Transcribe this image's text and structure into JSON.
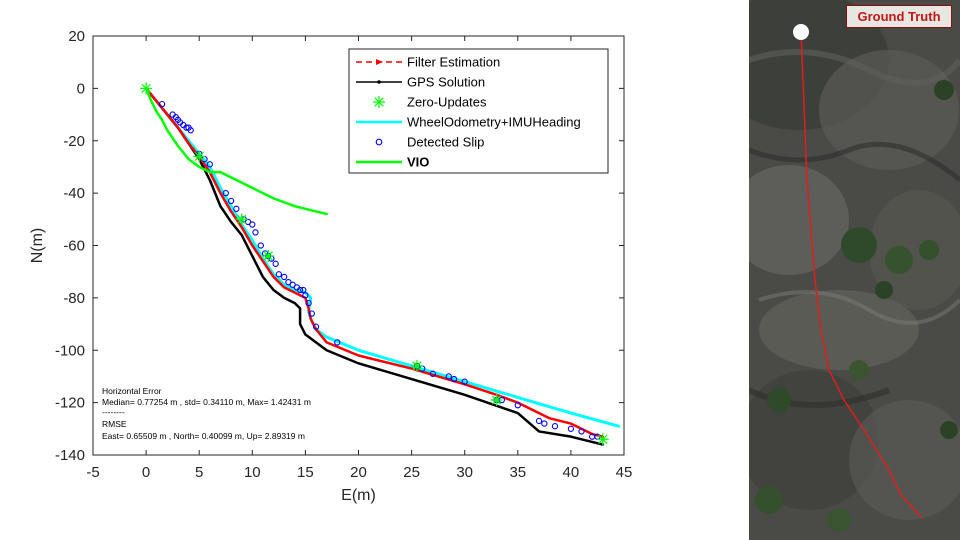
{
  "chart_data": {
    "type": "line",
    "xlabel": "E(m)",
    "ylabel": "N(m)",
    "xlim": [
      -5,
      45
    ],
    "ylim": [
      -140,
      20
    ],
    "xticks": [
      -5,
      0,
      5,
      10,
      15,
      20,
      25,
      30,
      35,
      40,
      45
    ],
    "yticks": [
      20,
      0,
      -20,
      -40,
      -60,
      -80,
      -100,
      -120,
      -140
    ],
    "grid": false,
    "legend_position": "top-right",
    "legend": [
      "Filter Estimation",
      "GPS Solution",
      "Zero-Updates",
      "WheelOdometry+IMUHeading",
      "Detected Slip",
      "VIO"
    ],
    "series": [
      {
        "name": "WheelOdometry+IMUHeading",
        "color": "#00ffff",
        "x": [
          0,
          1,
          2,
          3,
          4,
          5,
          6,
          7,
          8,
          9,
          10,
          11,
          12,
          13,
          14,
          15,
          15.5,
          15.3,
          15.5,
          16,
          17,
          20,
          25,
          30,
          35,
          40,
          44.5
        ],
        "y": [
          0,
          -5,
          -10,
          -15,
          -20,
          -25,
          -30,
          -38,
          -45,
          -52,
          -58,
          -65,
          -71,
          -75,
          -77,
          -78,
          -80,
          -85,
          -88,
          -92,
          -95,
          -100,
          -106,
          -112,
          -118,
          -124,
          -129
        ]
      },
      {
        "name": "Filter Estimation",
        "color": "#ff0000",
        "x": [
          0,
          1,
          2,
          3,
          4,
          5,
          6,
          7,
          8,
          9,
          10,
          11,
          12,
          13,
          14,
          15,
          15.3,
          15.5,
          16,
          17,
          20,
          25,
          30,
          33,
          35,
          38,
          40,
          42,
          43
        ],
        "y": [
          0,
          -5,
          -10,
          -15,
          -21,
          -26,
          -32,
          -40,
          -47,
          -53,
          -60,
          -66,
          -72,
          -76,
          -78,
          -80,
          -84,
          -88,
          -92,
          -97,
          -102,
          -107,
          -113,
          -117,
          -120,
          -126,
          -128,
          -132,
          -133
        ]
      },
      {
        "name": "GPS Solution",
        "color": "#000000",
        "x": [
          0,
          1,
          2,
          3,
          4,
          5,
          6,
          7,
          8,
          9,
          10,
          11,
          12,
          13,
          14,
          14.5,
          14.5,
          15,
          16,
          17,
          20,
          25,
          30,
          35,
          37,
          40,
          42,
          43
        ],
        "y": [
          0,
          -5,
          -10,
          -15,
          -21,
          -27,
          -35,
          -45,
          -51,
          -56,
          -64,
          -72,
          -77,
          -80,
          -82,
          -84,
          -90,
          -94,
          -97,
          -100,
          -105,
          -111,
          -117,
          -124,
          -131,
          -133,
          -135,
          -136
        ]
      },
      {
        "name": "VIO",
        "color": "#00ff00",
        "x": [
          0,
          0.5,
          1,
          1.5,
          2,
          3,
          4,
          5,
          6,
          7,
          8,
          10,
          12,
          14,
          16,
          17
        ],
        "y": [
          0,
          -5,
          -9,
          -12,
          -16,
          -22,
          -27,
          -30,
          -32,
          -32,
          -34,
          -38,
          -42,
          -45,
          -47,
          -48
        ]
      },
      {
        "name": "Zero-Updates",
        "color": "#00ff00",
        "x": [
          0,
          5,
          9,
          11.5,
          25.5,
          33,
          43
        ],
        "y": [
          0,
          -26,
          -50,
          -64,
          -106,
          -119,
          -134
        ]
      },
      {
        "name": "Detected Slip",
        "color": "#0000ff",
        "x": [
          1.5,
          2.5,
          2.8,
          3.0,
          3.2,
          3.5,
          3.8,
          4.0,
          4.2,
          5.0,
          5.5,
          6.0,
          7.5,
          8.0,
          8.5,
          9.2,
          9.6,
          10.0,
          10.3,
          10.8,
          11.2,
          11.5,
          11.8,
          12.2,
          12.5,
          13.0,
          13.4,
          13.8,
          14.2,
          14.5,
          14.8,
          15.0,
          15.3,
          15.6,
          16.0,
          18.0,
          25.5,
          26.0,
          27.0,
          28.5,
          29.0,
          30.0,
          33.0,
          33.5,
          35.0,
          37.0,
          37.5,
          38.5,
          40.0,
          41.0,
          42.0,
          42.5
        ],
        "y": [
          -6,
          -10,
          -11,
          -12,
          -13,
          -14,
          -15,
          -15,
          -16,
          -25,
          -27,
          -29,
          -40,
          -43,
          -46,
          -50,
          -51,
          -52,
          -55,
          -60,
          -63,
          -64,
          -65,
          -67,
          -71,
          -72,
          -74,
          -75,
          -76,
          -77,
          -77,
          -79,
          -82,
          -86,
          -91,
          -97,
          -106,
          -107,
          -109,
          -110,
          -111,
          -112,
          -119,
          -119,
          -121,
          -127,
          -128,
          -129,
          -130,
          -131,
          -133,
          -133
        ]
      }
    ],
    "annotation": {
      "heading": "Horizontal Error",
      "median_line": " Median= 0.77254  m , std= 0.34110 m, Max= 1.42431  m",
      "separator": "--------",
      "rmse_heading": "RMSE",
      "rmse_line": " East= 0.65509 m , North= 0.40099 m, Up= 2.89319 m"
    }
  },
  "ground_truth": {
    "label": "Ground Truth",
    "path_color": "#e01e1e",
    "start_marker_color": "#ffffff"
  }
}
